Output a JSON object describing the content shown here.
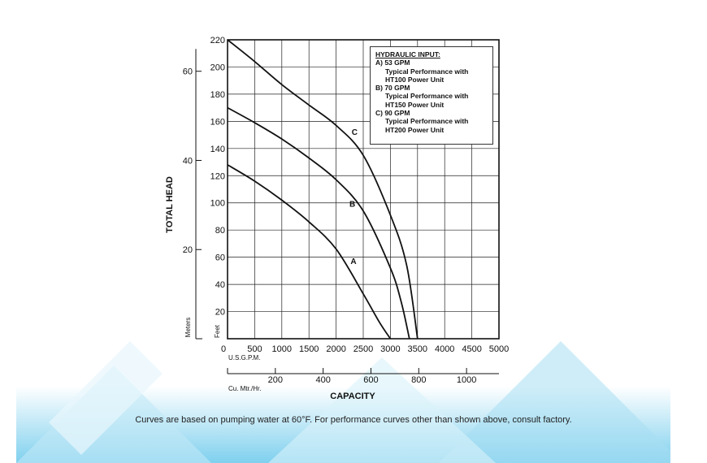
{
  "chart_data": {
    "type": "line",
    "xlabel": "CAPACITY",
    "ylabel": "TOTAL HEAD",
    "x_unit_label": "U.S.G.P.M.",
    "x2_unit_label": "Cu. Mtr./Hr.",
    "y_unit_label": "Feet",
    "y2_unit_label": "Meters",
    "xlim": [
      0,
      5000
    ],
    "ylim": [
      0,
      220
    ],
    "x_ticks": [
      0,
      500,
      1000,
      1500,
      2000,
      2500,
      3000,
      3500,
      4000,
      4500,
      5000
    ],
    "x2_ticks": [
      200,
      400,
      600,
      800,
      1000
    ],
    "y_ticks": [
      20,
      40,
      60,
      80,
      100,
      120,
      140,
      160,
      180,
      200,
      220
    ],
    "y2_ticks": [
      20,
      40,
      60
    ],
    "grid": true,
    "series": [
      {
        "name": "A",
        "x": [
          0,
          500,
          1000,
          1500,
          2000,
          2500,
          2800,
          3000
        ],
        "y": [
          128,
          116,
          102,
          86,
          66,
          33,
          12,
          0
        ]
      },
      {
        "name": "B",
        "x": [
          0,
          500,
          1000,
          1500,
          2000,
          2500,
          3000,
          3200,
          3350
        ],
        "y": [
          170,
          159,
          147,
          133,
          117,
          94,
          52,
          27,
          0
        ]
      },
      {
        "name": "C",
        "x": [
          0,
          500,
          1000,
          1500,
          2000,
          2500,
          3000,
          3300,
          3500
        ],
        "y": [
          220,
          204,
          187,
          172,
          157,
          135,
          91,
          54,
          0
        ]
      }
    ]
  },
  "legend": {
    "title": "HYDRAULIC INPUT:",
    "entries": [
      {
        "head": "A)  53 GPM",
        "l1": "Typical Performance  with",
        "l2": "HT100 Power Unit"
      },
      {
        "head": "B) 70 GPM",
        "l1": "Typical Performance  with",
        "l2": "HT150 Power Unit"
      },
      {
        "head": "C) 90 GPM",
        "l1": "Typical Performance  with",
        "l2": " HT200 Power Unit"
      }
    ]
  },
  "footnote": "Curves are based on pumping water at 60°F. For performance curves other than shown above, consult factory."
}
